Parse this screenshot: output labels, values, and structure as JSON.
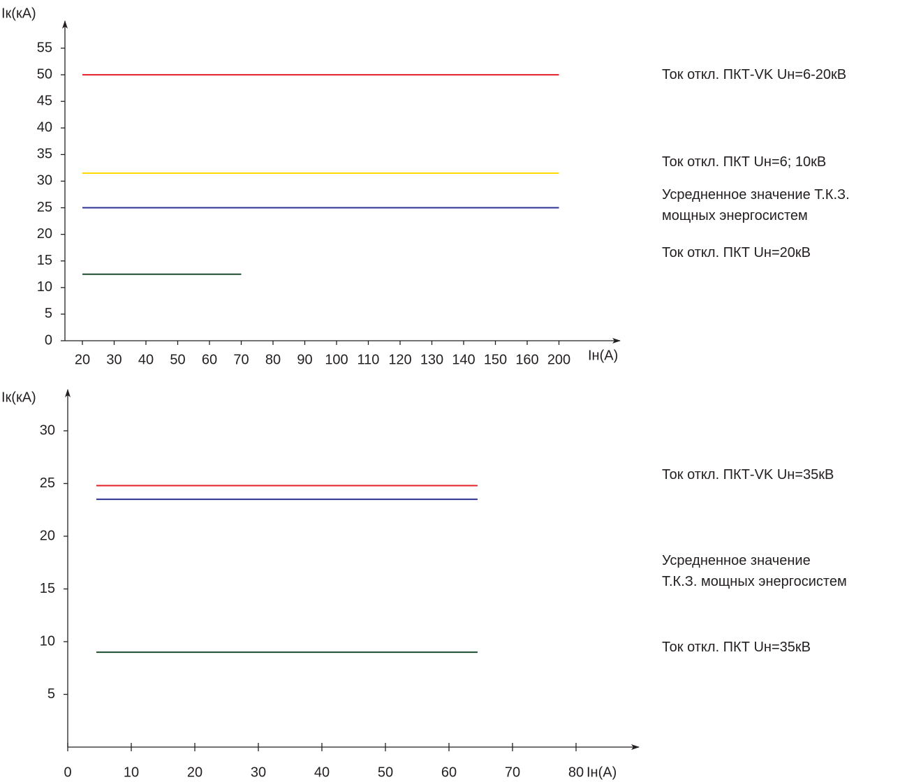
{
  "chart_data": [
    {
      "type": "line",
      "y_label": "Iк(кА)",
      "x_label": "Iн(А)",
      "categories": [
        "20",
        "30",
        "40",
        "50",
        "60",
        "70",
        "80",
        "90",
        "100",
        "110",
        "120",
        "130",
        "140",
        "150",
        "160",
        "200"
      ],
      "ylim": [
        0,
        55
      ],
      "yticks": [
        0,
        5,
        10,
        15,
        20,
        25,
        30,
        35,
        40,
        45,
        50,
        55
      ],
      "series": [
        {
          "name": "Ток откл. ПКТ-VK Uн=6-20кВ",
          "color": "#e31e24",
          "values": [
            50,
            50,
            50,
            50,
            50,
            50,
            50,
            50,
            50,
            50,
            50,
            50,
            50,
            50,
            50,
            50
          ]
        },
        {
          "name": "Ток откл. ПКТ Uн=6; 10кВ",
          "color": "#ffd800",
          "values": [
            31.5,
            31.5,
            31.5,
            31.5,
            31.5,
            31.5,
            31.5,
            31.5,
            31.5,
            31.5,
            31.5,
            31.5,
            31.5,
            31.5,
            31.5,
            31.5
          ]
        },
        {
          "name": "Усредненное значение Т.К.З. мощных энергосистем",
          "color": "#2e3192",
          "values": [
            25,
            25,
            25,
            25,
            25,
            25,
            25,
            25,
            25,
            25,
            25,
            25,
            25,
            25,
            25,
            25
          ]
        },
        {
          "name": "Ток откл. ПКТ Uн=20кВ",
          "color": "#1b4d2e",
          "values": [
            12.5,
            12.5,
            12.5,
            12.5,
            12.5,
            12.5,
            null,
            null,
            null,
            null,
            null,
            null,
            null,
            null,
            null,
            null
          ]
        }
      ]
    },
    {
      "type": "line",
      "y_label": "Iк(кА)",
      "x_label": "Iн(А)",
      "xlim": [
        0,
        80
      ],
      "xticks": [
        0,
        10,
        20,
        30,
        40,
        50,
        60,
        70,
        80
      ],
      "ylim": [
        0,
        30
      ],
      "yticks": [
        5,
        10,
        15,
        20,
        25,
        30
      ],
      "series": [
        {
          "name": "Ток откл. ПКТ-VK Uн=35кВ",
          "color": "#e31e24",
          "x": [
            4.5,
            64.5
          ],
          "values": [
            24.8,
            24.8
          ]
        },
        {
          "name": "Усредненное значение Т.К.З. мощных энергосистем",
          "color": "#2e3192",
          "x": [
            4.5,
            64.5
          ],
          "values": [
            23.5,
            23.5
          ]
        },
        {
          "name": "Ток откл. ПКТ Uн=35кВ",
          "color": "#1b4d2e",
          "x": [
            4.5,
            64.5
          ],
          "values": [
            9,
            9
          ]
        }
      ]
    }
  ]
}
